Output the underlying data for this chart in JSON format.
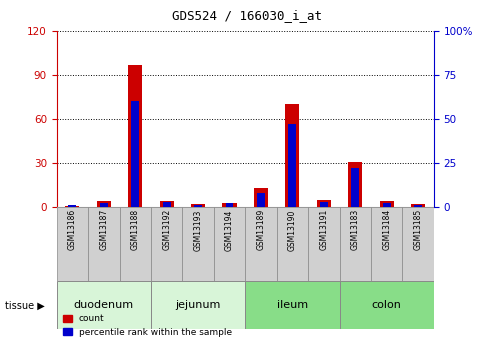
{
  "title": "GDS524 / 166030_i_at",
  "samples": [
    "GSM13186",
    "GSM13187",
    "GSM13188",
    "GSM13192",
    "GSM13193",
    "GSM13194",
    "GSM13189",
    "GSM13190",
    "GSM13191",
    "GSM13183",
    "GSM13184",
    "GSM13185"
  ],
  "count_values": [
    1,
    4,
    97,
    4,
    2,
    3,
    13,
    70,
    5,
    31,
    4,
    2
  ],
  "percentile_values": [
    1,
    2,
    60,
    3,
    1,
    2,
    8,
    47,
    3,
    22,
    2,
    1
  ],
  "tissues": [
    {
      "label": "duodenum",
      "start": 0,
      "end": 3,
      "color": "#d8f5d8"
    },
    {
      "label": "jejunum",
      "start": 3,
      "end": 6,
      "color": "#d8f5d8"
    },
    {
      "label": "ileum",
      "start": 6,
      "end": 9,
      "color": "#88dd88"
    },
    {
      "label": "colon",
      "start": 9,
      "end": 12,
      "color": "#88dd88"
    }
  ],
  "ylim_left": [
    0,
    120
  ],
  "ylim_right": [
    0,
    100
  ],
  "yticks_left": [
    0,
    30,
    60,
    90,
    120
  ],
  "yticks_right": [
    0,
    25,
    50,
    75,
    100
  ],
  "bar_color_red": "#cc0000",
  "bar_color_blue": "#0000cc",
  "red_bar_width": 0.45,
  "blue_bar_width": 0.25,
  "bg_color": "#ffffff",
  "tick_color_left": "#cc0000",
  "tick_color_right": "#0000cc",
  "sample_box_color": "#d0d0d0",
  "tissue_label_fontsize": 8,
  "sample_label_fontsize": 5.5,
  "title_fontsize": 9
}
